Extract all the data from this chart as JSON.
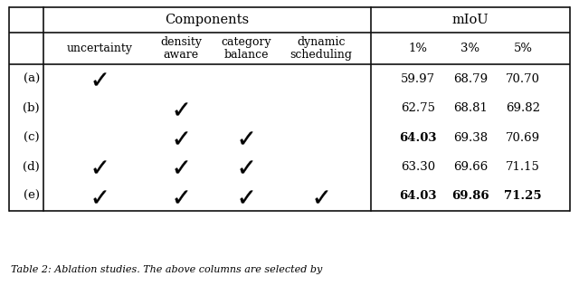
{
  "bg_color": "#ffffff",
  "rows": [
    "(a)",
    "(b)",
    "(c)",
    "(d)",
    "(e)"
  ],
  "checkmarks": [
    [
      true,
      false,
      false,
      false
    ],
    [
      false,
      true,
      false,
      false
    ],
    [
      false,
      true,
      true,
      false
    ],
    [
      true,
      true,
      true,
      false
    ],
    [
      true,
      true,
      true,
      true
    ]
  ],
  "values": [
    [
      "59.97",
      "68.79",
      "70.70"
    ],
    [
      "62.75",
      "68.81",
      "69.82"
    ],
    [
      "64.03",
      "69.38",
      "70.69"
    ],
    [
      "63.30",
      "69.66",
      "71.15"
    ],
    [
      "64.03",
      "69.86",
      "71.25"
    ]
  ],
  "bold_cells": [
    [
      false,
      false,
      false
    ],
    [
      false,
      false,
      false
    ],
    [
      true,
      false,
      false
    ],
    [
      false,
      false,
      false
    ],
    [
      true,
      true,
      true
    ]
  ],
  "col_headers_line1": [
    "uncertainty",
    "density",
    "category",
    "dynamic"
  ],
  "col_headers_line2": [
    "",
    "aware",
    "balance",
    "scheduling"
  ],
  "miou_headers": [
    "1%",
    "3%",
    "5%"
  ],
  "caption": "Table 2: Ablation studies. The above columns are selected by"
}
